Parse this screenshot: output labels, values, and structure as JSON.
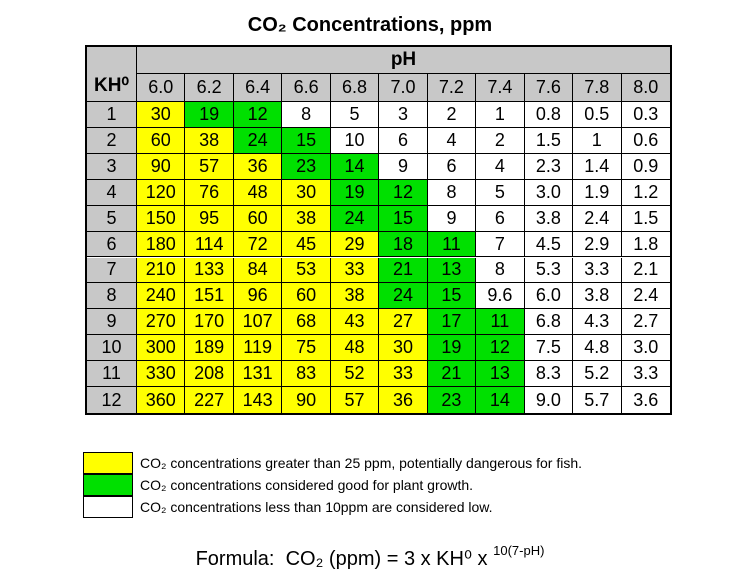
{
  "title": "CO₂ Concentrations, ppm",
  "table": {
    "ph_label": "pH",
    "kh_label": "KH⁰",
    "ph_values": [
      "6.0",
      "6.2",
      "6.4",
      "6.6",
      "6.8",
      "7.0",
      "7.2",
      "7.4",
      "7.6",
      "7.8",
      "8.0"
    ],
    "header_color": "#c8c8c8",
    "rows": [
      {
        "kh": "1",
        "cells": [
          "30",
          "19",
          "12",
          "8",
          "5",
          "3",
          "2",
          "1",
          "0.8",
          "0.5",
          "0.3"
        ],
        "fills": [
          "#ffff00",
          "#00e000",
          "#00e000",
          "#ffffff",
          "#ffffff",
          "#ffffff",
          "#ffffff",
          "#ffffff",
          "#ffffff",
          "#ffffff",
          "#ffffff"
        ]
      },
      {
        "kh": "2",
        "cells": [
          "60",
          "38",
          "24",
          "15",
          "10",
          "6",
          "4",
          "2",
          "1.5",
          "1",
          "0.6"
        ],
        "fills": [
          "#ffff00",
          "#ffff00",
          "#00e000",
          "#00e000",
          "#ffffff",
          "#ffffff",
          "#ffffff",
          "#ffffff",
          "#ffffff",
          "#ffffff",
          "#ffffff"
        ]
      },
      {
        "kh": "3",
        "cells": [
          "90",
          "57",
          "36",
          "23",
          "14",
          "9",
          "6",
          "4",
          "2.3",
          "1.4",
          "0.9"
        ],
        "fills": [
          "#ffff00",
          "#ffff00",
          "#ffff00",
          "#00e000",
          "#00e000",
          "#ffffff",
          "#ffffff",
          "#ffffff",
          "#ffffff",
          "#ffffff",
          "#ffffff"
        ]
      },
      {
        "kh": "4",
        "cells": [
          "120",
          "76",
          "48",
          "30",
          "19",
          "12",
          "8",
          "5",
          "3.0",
          "1.9",
          "1.2"
        ],
        "fills": [
          "#ffff00",
          "#ffff00",
          "#ffff00",
          "#ffff00",
          "#00e000",
          "#00e000",
          "#ffffff",
          "#ffffff",
          "#ffffff",
          "#ffffff",
          "#ffffff"
        ]
      },
      {
        "kh": "5",
        "cells": [
          "150",
          "95",
          "60",
          "38",
          "24",
          "15",
          "9",
          "6",
          "3.8",
          "2.4",
          "1.5"
        ],
        "fills": [
          "#ffff00",
          "#ffff00",
          "#ffff00",
          "#ffff00",
          "#00e000",
          "#00e000",
          "#ffffff",
          "#ffffff",
          "#ffffff",
          "#ffffff",
          "#ffffff"
        ]
      },
      {
        "kh": "6",
        "cells": [
          "180",
          "114",
          "72",
          "45",
          "29",
          "18",
          "11",
          "7",
          "4.5",
          "2.9",
          "1.8"
        ],
        "fills": [
          "#ffff00",
          "#ffff00",
          "#ffff00",
          "#ffff00",
          "#ffff00",
          "#00e000",
          "#00e000",
          "#ffffff",
          "#ffffff",
          "#ffffff",
          "#ffffff"
        ]
      },
      {
        "kh": "7",
        "cells": [
          "210",
          "133",
          "84",
          "53",
          "33",
          "21",
          "13",
          "8",
          "5.3",
          "3.3",
          "2.1"
        ],
        "fills": [
          "#ffff00",
          "#ffff00",
          "#ffff00",
          "#ffff00",
          "#ffff00",
          "#00e000",
          "#00e000",
          "#ffffff",
          "#ffffff",
          "#ffffff",
          "#ffffff"
        ]
      },
      {
        "kh": "8",
        "cells": [
          "240",
          "151",
          "96",
          "60",
          "38",
          "24",
          "15",
          "9.6",
          "6.0",
          "3.8",
          "2.4"
        ],
        "fills": [
          "#ffff00",
          "#ffff00",
          "#ffff00",
          "#ffff00",
          "#ffff00",
          "#00e000",
          "#00e000",
          "#ffffff",
          "#ffffff",
          "#ffffff",
          "#ffffff"
        ]
      },
      {
        "kh": "9",
        "cells": [
          "270",
          "170",
          "107",
          "68",
          "43",
          "27",
          "17",
          "11",
          "6.8",
          "4.3",
          "2.7"
        ],
        "fills": [
          "#ffff00",
          "#ffff00",
          "#ffff00",
          "#ffff00",
          "#ffff00",
          "#ffff00",
          "#00e000",
          "#00e000",
          "#ffffff",
          "#ffffff",
          "#ffffff"
        ]
      },
      {
        "kh": "10",
        "cells": [
          "300",
          "189",
          "119",
          "75",
          "48",
          "30",
          "19",
          "12",
          "7.5",
          "4.8",
          "3.0"
        ],
        "fills": [
          "#ffff00",
          "#ffff00",
          "#ffff00",
          "#ffff00",
          "#ffff00",
          "#ffff00",
          "#00e000",
          "#00e000",
          "#ffffff",
          "#ffffff",
          "#ffffff"
        ]
      },
      {
        "kh": "11",
        "cells": [
          "330",
          "208",
          "131",
          "83",
          "52",
          "33",
          "21",
          "13",
          "8.3",
          "5.2",
          "3.3"
        ],
        "fills": [
          "#ffff00",
          "#ffff00",
          "#ffff00",
          "#ffff00",
          "#ffff00",
          "#ffff00",
          "#00e000",
          "#00e000",
          "#ffffff",
          "#ffffff",
          "#ffffff"
        ]
      },
      {
        "kh": "12",
        "cells": [
          "360",
          "227",
          "143",
          "90",
          "57",
          "36",
          "23",
          "14",
          "9.0",
          "5.7",
          "3.6"
        ],
        "fills": [
          "#ffff00",
          "#ffff00",
          "#ffff00",
          "#ffff00",
          "#ffff00",
          "#ffff00",
          "#00e000",
          "#00e000",
          "#ffffff",
          "#ffffff",
          "#ffffff"
        ]
      }
    ]
  },
  "legend": [
    {
      "color": "#ffff00",
      "text": "CO₂ concentrations greater than 25 ppm, potentially dangerous for fish."
    },
    {
      "color": "#00e000",
      "text": "CO₂ concentrations considered good for plant growth."
    },
    {
      "color": "#ffffff",
      "text": "CO₂ concentrations less than 10ppm are considered low."
    }
  ],
  "formula": {
    "label": "Formula:",
    "text": "CO₂ (ppm) = 3 x KH⁰ x",
    "exponent": "10(7-pH)"
  }
}
